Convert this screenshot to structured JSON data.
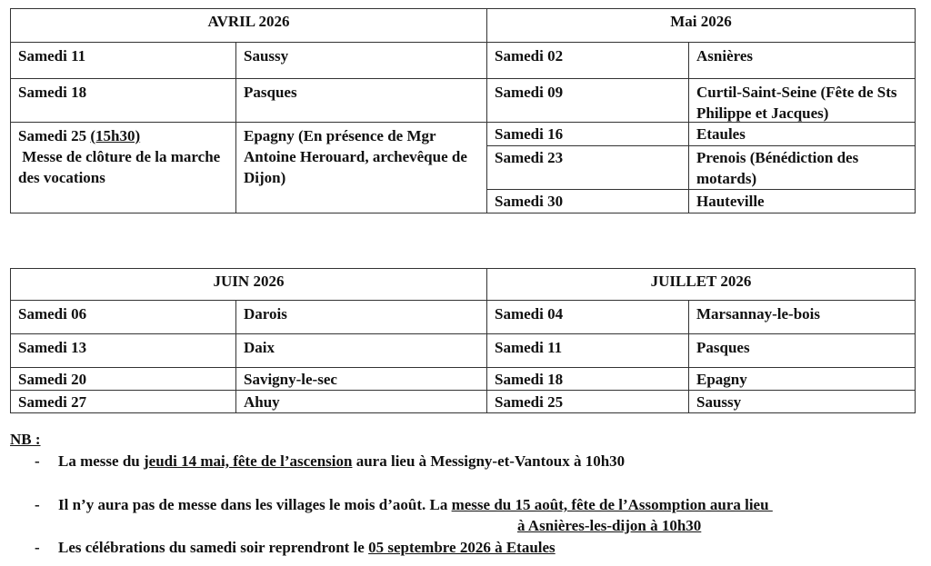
{
  "avril": {
    "title": "AVRIL 2026",
    "rows": [
      {
        "date": "Samedi 11",
        "place": "Saussy"
      },
      {
        "date": "Samedi 18",
        "place": "Pasques"
      },
      {
        "date": "Samedi 25 ",
        "time": "(15h30)",
        "note": " Messe de clôture de la marche des vocations",
        "place": "Epagny (En présence de Mgr Antoine Herouard, archevêque de Dijon)"
      }
    ]
  },
  "mai": {
    "title": "Mai 2026",
    "rows": [
      {
        "date": "Samedi  02",
        "place": "Asnières"
      },
      {
        "date": "Samedi 09",
        "place": "Curtil-Saint-Seine (Fête de Sts Philippe et Jacques)"
      },
      {
        "date": "Samedi 16",
        "place": "Etaules"
      },
      {
        "date": "Samedi 23",
        "place": "Prenois (Bénédiction des motards)"
      },
      {
        "date": "Samedi 30",
        "place": "Hauteville"
      }
    ]
  },
  "juin": {
    "title": "JUIN 2026",
    "rows": [
      {
        "date": "Samedi 06",
        "place": "Darois"
      },
      {
        "date": "Samedi 13",
        "place": "Daix"
      },
      {
        "date": "Samedi 20",
        "place": "Savigny-le-sec"
      },
      {
        "date": "Samedi 27",
        "place": "Ahuy"
      }
    ]
  },
  "juillet": {
    "title": "JUILLET 2026",
    "rows": [
      {
        "date": "Samedi  04",
        "place": "Marsannay-le-bois"
      },
      {
        "date": "Samedi 11",
        "place": "Pasques"
      },
      {
        "date": "Samedi 18",
        "place": "Epagny"
      },
      {
        "date": "Samedi 25",
        "place": "Saussy"
      }
    ]
  },
  "nb": {
    "label": "NB :",
    "bullet": "-",
    "items": [
      {
        "pre": "La messe du ",
        "u": "jeudi 14 mai, fête de l’ascension",
        "post": " aura lieu à Messigny-et-Vantoux à 10h30"
      },
      {
        "pre": "Il n’y aura pas de messe dans les villages le mois d’août. La ",
        "u": "messe du 15 août, fête de l’Assomption aura lieu ",
        "u2": "à Asnières-les-dijon à 10h30"
      },
      {
        "pre": "Les célébrations du samedi soir reprendront le ",
        "u": "05 septembre 2026 à Etaules"
      }
    ]
  }
}
